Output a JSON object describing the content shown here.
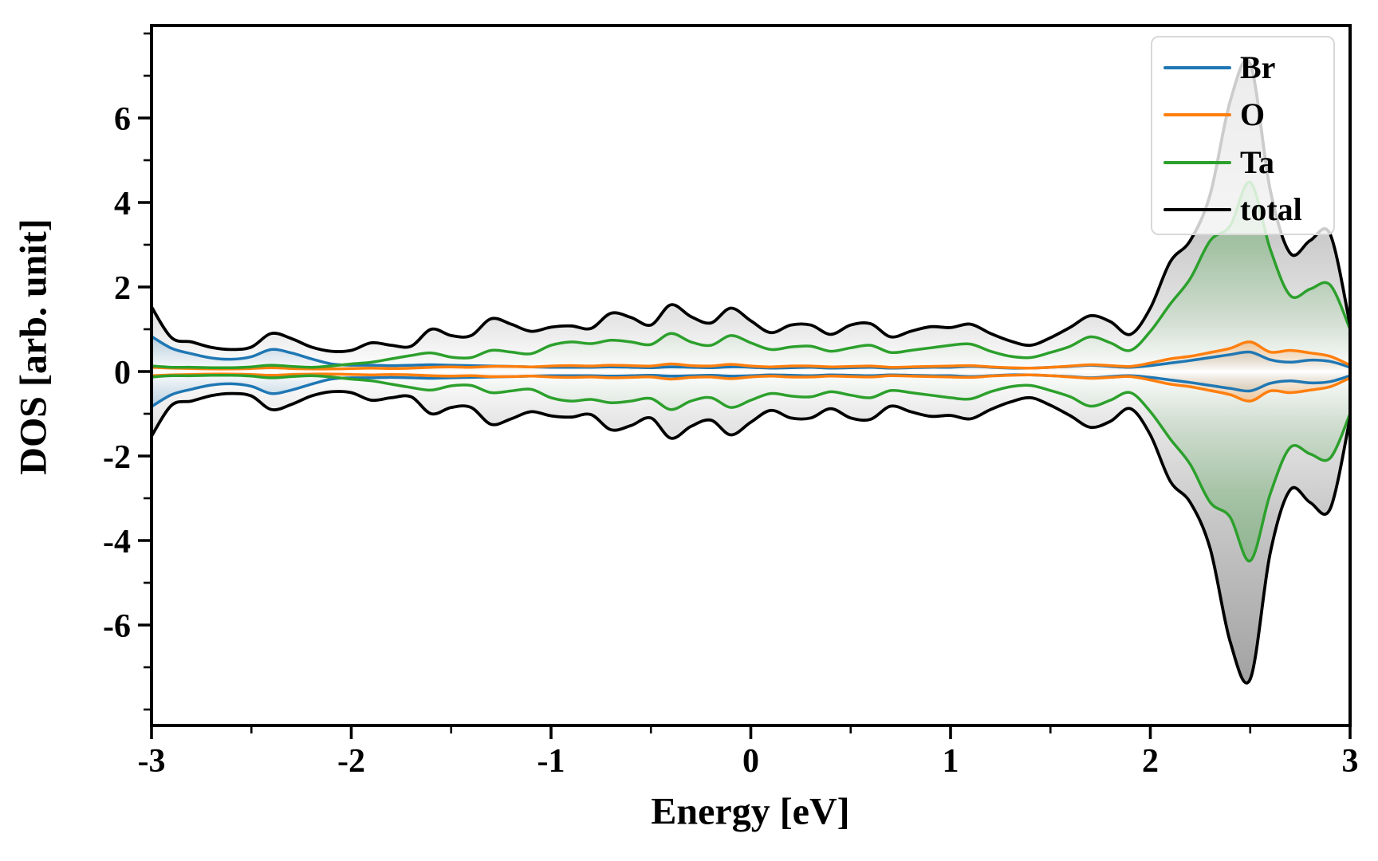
{
  "figure": {
    "kind": "density-of-states-plot",
    "background_color": "#ffffff",
    "axis_color": "#000000"
  },
  "chart_data": {
    "type": "area",
    "title": "",
    "xlabel": "Energy [eV]",
    "ylabel": "DOS [arb. unit]",
    "xlim": [
      -3,
      3
    ],
    "ylim": [
      -8.4,
      8.2
    ],
    "grid": false,
    "symmetric_spin_mirror": true,
    "x_ticks": {
      "major": [
        -3,
        -2,
        -1,
        0,
        1,
        2,
        3
      ],
      "labels": [
        "-3",
        "-2",
        "-1",
        "0",
        "1",
        "2",
        "3"
      ],
      "minor": [
        -2.5,
        -1.5,
        -0.5,
        0.5,
        1.5,
        2.5
      ]
    },
    "y_ticks": {
      "major": [
        -6,
        -4,
        -2,
        0,
        2,
        4,
        6
      ],
      "labels": [
        "-6",
        "-4",
        "-2",
        "0",
        "2",
        "4",
        "6"
      ],
      "minor": [
        -8,
        -7,
        -5,
        -3,
        -1,
        1,
        3,
        5,
        7,
        8
      ]
    },
    "x": {
      "start": -3.0,
      "step": 0.1,
      "count": 61
    },
    "legend": {
      "position": "upper right",
      "entries": [
        "Br",
        "O",
        "Ta",
        "total"
      ]
    },
    "series": [
      {
        "name": "Br",
        "color": "#1f77b4",
        "values": [
          0.83,
          0.55,
          0.42,
          0.32,
          0.29,
          0.35,
          0.52,
          0.44,
          0.3,
          0.18,
          0.15,
          0.15,
          0.14,
          0.15,
          0.16,
          0.15,
          0.14,
          0.13,
          0.12,
          0.11,
          0.1,
          0.1,
          0.1,
          0.11,
          0.1,
          0.09,
          0.11,
          0.1,
          0.09,
          0.11,
          0.1,
          0.08,
          0.09,
          0.1,
          0.08,
          0.09,
          0.1,
          0.08,
          0.09,
          0.1,
          0.1,
          0.12,
          0.1,
          0.08,
          0.08,
          0.1,
          0.12,
          0.15,
          0.12,
          0.1,
          0.14,
          0.2,
          0.26,
          0.33,
          0.4,
          0.46,
          0.28,
          0.22,
          0.27,
          0.24,
          0.1
        ]
      },
      {
        "name": "O",
        "color": "#ff7f0e",
        "values": [
          0.1,
          0.08,
          0.07,
          0.06,
          0.06,
          0.07,
          0.09,
          0.07,
          0.06,
          0.06,
          0.07,
          0.08,
          0.07,
          0.08,
          0.1,
          0.11,
          0.1,
          0.12,
          0.12,
          0.11,
          0.13,
          0.14,
          0.13,
          0.15,
          0.14,
          0.13,
          0.18,
          0.14,
          0.13,
          0.17,
          0.13,
          0.11,
          0.13,
          0.13,
          0.11,
          0.12,
          0.13,
          0.1,
          0.11,
          0.12,
          0.13,
          0.14,
          0.11,
          0.09,
          0.08,
          0.1,
          0.13,
          0.16,
          0.14,
          0.12,
          0.2,
          0.3,
          0.36,
          0.45,
          0.55,
          0.7,
          0.46,
          0.5,
          0.44,
          0.36,
          0.15
        ]
      },
      {
        "name": "Ta",
        "color": "#2ca02c",
        "values": [
          0.13,
          0.1,
          0.1,
          0.09,
          0.09,
          0.11,
          0.15,
          0.12,
          0.1,
          0.13,
          0.18,
          0.22,
          0.3,
          0.38,
          0.44,
          0.34,
          0.33,
          0.5,
          0.46,
          0.42,
          0.62,
          0.7,
          0.66,
          0.74,
          0.7,
          0.64,
          0.9,
          0.7,
          0.62,
          0.85,
          0.68,
          0.52,
          0.58,
          0.6,
          0.48,
          0.56,
          0.62,
          0.45,
          0.5,
          0.56,
          0.62,
          0.65,
          0.48,
          0.36,
          0.33,
          0.45,
          0.6,
          0.82,
          0.68,
          0.5,
          0.95,
          1.6,
          2.2,
          3.1,
          3.45,
          4.48,
          2.9,
          1.8,
          1.95,
          2.05,
          1.0
        ]
      },
      {
        "name": "total",
        "color": "#000000",
        "values": [
          1.53,
          0.8,
          0.7,
          0.57,
          0.52,
          0.58,
          0.9,
          0.78,
          0.58,
          0.48,
          0.5,
          0.68,
          0.62,
          0.6,
          1.0,
          0.85,
          0.85,
          1.25,
          1.12,
          0.95,
          1.05,
          1.08,
          1.02,
          1.38,
          1.28,
          1.1,
          1.58,
          1.3,
          1.15,
          1.5,
          1.2,
          0.92,
          1.1,
          1.1,
          0.88,
          1.1,
          1.13,
          0.82,
          0.95,
          1.06,
          1.04,
          1.12,
          0.9,
          0.72,
          0.62,
          0.8,
          1.05,
          1.32,
          1.18,
          0.88,
          1.5,
          2.6,
          3.1,
          4.2,
          6.4,
          7.28,
          4.3,
          2.8,
          3.1,
          3.25,
          1.1
        ]
      }
    ]
  }
}
